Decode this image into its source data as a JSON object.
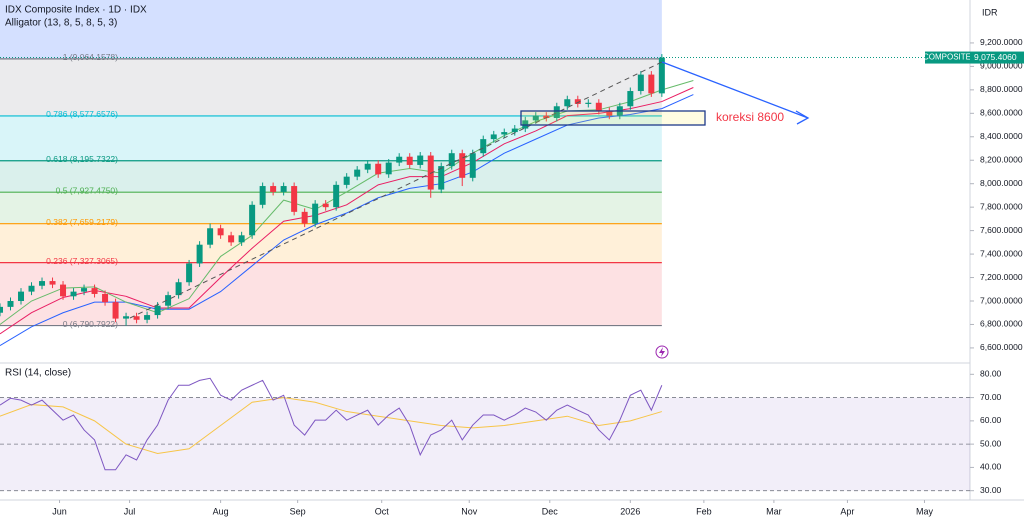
{
  "chart_data": [
    {
      "type": "candlestick",
      "title": "IDX Composite Index · 1D · IDX",
      "subtitle": "Alligator (13, 8, 5, 8, 5, 3)",
      "currency": "IDR",
      "x": [
        0,
        3,
        6,
        9,
        12,
        15,
        18,
        21,
        24,
        27,
        30,
        33,
        36,
        39,
        42,
        45,
        48,
        51,
        54,
        57,
        60,
        63,
        66,
        69,
        72,
        75,
        78,
        81,
        84,
        87,
        90,
        93,
        96,
        99,
        102,
        105,
        108,
        111,
        114,
        117,
        120,
        123,
        126,
        129,
        132,
        135,
        138,
        141,
        144,
        147,
        150,
        153,
        156,
        159,
        162,
        165,
        168,
        171,
        174,
        177,
        180,
        183,
        186,
        189
      ],
      "open": [
        6900,
        6950,
        7000,
        7080,
        7130,
        7170,
        7140,
        7040,
        7080,
        7110,
        7060,
        6990,
        6850,
        6870,
        6840,
        6880,
        6960,
        7050,
        7160,
        7320,
        7480,
        7620,
        7560,
        7500,
        7560,
        7820,
        7980,
        7930,
        7980,
        7760,
        7660,
        7830,
        7800,
        7990,
        8060,
        8120,
        8170,
        8080,
        8180,
        8230,
        8160,
        8240,
        7950,
        8150,
        8260,
        8050,
        8260,
        8380,
        8420,
        8440,
        8470,
        8540,
        8580,
        8560,
        8660,
        8720,
        8680,
        8690,
        8620,
        8580,
        8660,
        8790,
        8930,
        8770
      ],
      "high": [
        6980,
        7030,
        7110,
        7160,
        7200,
        7200,
        7170,
        7110,
        7140,
        7140,
        7090,
        7020,
        6900,
        6900,
        6910,
        6990,
        7080,
        7190,
        7350,
        7510,
        7660,
        7650,
        7590,
        7590,
        7850,
        8010,
        8010,
        8010,
        8010,
        7790,
        7860,
        7860,
        8020,
        8090,
        8150,
        8200,
        8200,
        8210,
        8260,
        8260,
        8270,
        8270,
        8180,
        8290,
        8290,
        8290,
        8410,
        8450,
        8470,
        8500,
        8570,
        8610,
        8610,
        8690,
        8750,
        8750,
        8720,
        8720,
        8650,
        8690,
        8820,
        8960,
        8960,
        9105
      ],
      "low": [
        6870,
        6920,
        6970,
        7050,
        7100,
        7110,
        7010,
        7010,
        7050,
        7030,
        6960,
        6820,
        6790,
        6810,
        6810,
        6850,
        6930,
        7020,
        7130,
        7290,
        7450,
        7530,
        7470,
        7470,
        7530,
        7790,
        7900,
        7900,
        7730,
        7630,
        7630,
        7770,
        7770,
        7960,
        8030,
        8090,
        8050,
        8050,
        8150,
        8130,
        8130,
        7880,
        7920,
        8120,
        7980,
        8020,
        8230,
        8350,
        8390,
        8410,
        8440,
        8510,
        8530,
        8530,
        8630,
        8650,
        8650,
        8590,
        8550,
        8550,
        8630,
        8760,
        8740,
        8740
      ],
      "close": [
        6950,
        7000,
        7080,
        7130,
        7170,
        7140,
        7040,
        7080,
        7110,
        7060,
        6990,
        6850,
        6870,
        6840,
        6880,
        6960,
        7050,
        7160,
        7320,
        7480,
        7620,
        7560,
        7500,
        7560,
        7820,
        7980,
        7930,
        7980,
        7760,
        7660,
        7830,
        7800,
        7990,
        8060,
        8120,
        8170,
        8080,
        8180,
        8230,
        8160,
        8240,
        7950,
        8150,
        8260,
        8050,
        8260,
        8380,
        8420,
        8440,
        8470,
        8540,
        8580,
        8560,
        8660,
        8720,
        8680,
        8690,
        8620,
        8580,
        8660,
        8790,
        8930,
        8770,
        9075
      ],
      "up_color": "#089981",
      "down_color": "#f23645",
      "lines": [
        {
          "color": "#2962ff",
          "x": [
            0,
            9,
            18,
            27,
            36,
            45,
            54,
            63,
            72,
            81,
            90,
            99,
            108,
            117,
            126,
            135,
            144,
            153,
            162,
            171,
            180,
            189,
            198
          ],
          "values": [
            6620,
            6780,
            6900,
            6990,
            6990,
            6930,
            6930,
            7080,
            7300,
            7520,
            7650,
            7750,
            7880,
            7960,
            8000,
            8100,
            8260,
            8380,
            8500,
            8560,
            8590,
            8640,
            8760
          ]
        },
        {
          "color": "#e91e63",
          "x": [
            0,
            9,
            18,
            27,
            36,
            45,
            54,
            63,
            72,
            81,
            90,
            99,
            108,
            117,
            126,
            135,
            144,
            153,
            162,
            171,
            180,
            189,
            198
          ],
          "values": [
            6720,
            6900,
            7030,
            7090,
            7040,
            6940,
            6940,
            7200,
            7450,
            7680,
            7730,
            7820,
            7990,
            8060,
            8060,
            8180,
            8340,
            8450,
            8580,
            8600,
            8640,
            8700,
            8820
          ]
        },
        {
          "color": "#66bb6a",
          "x": [
            0,
            9,
            18,
            27,
            36,
            45,
            54,
            63,
            72,
            81,
            90,
            99,
            108,
            117,
            126,
            135,
            144,
            153,
            162,
            171,
            180,
            189,
            198
          ],
          "values": [
            6800,
            7000,
            7110,
            7120,
            6990,
            6900,
            7020,
            7380,
            7560,
            7860,
            7780,
            7930,
            8090,
            8130,
            8090,
            8260,
            8410,
            8530,
            8620,
            8630,
            8700,
            8800,
            8880
          ]
        }
      ],
      "fib_levels": [
        {
          "label": "1 (9,064.1578)",
          "value": 9064.1578,
          "color": "#787b86"
        },
        {
          "label": "0.786 (8,577.6576)",
          "value": 8577.6576,
          "color": "#00bcd4"
        },
        {
          "label": "0.618 (8,195.7322)",
          "value": 8195.7322,
          "color": "#089981"
        },
        {
          "label": "0.5 (7,927.4750)",
          "value": 7927.475,
          "color": "#4caf50"
        },
        {
          "label": "0.382 (7,659.2179)",
          "value": 7659.2179,
          "color": "#ff9800"
        },
        {
          "label": "0.236 (7,327.3065)",
          "value": 7327.3065,
          "color": "#f23645"
        },
        {
          "label": "0 (6,790.7922)",
          "value": 6790.7922,
          "color": "#787b86"
        }
      ],
      "last_price": {
        "name": "COMPOSITE",
        "value": 9075.406,
        "label": "9,075.4060"
      },
      "annotation": "koreksi 8600",
      "xlim": [
        0,
        277
      ],
      "ylim": [
        6480,
        9566
      ],
      "yticks": [
        {
          "value": 9200,
          "label": "9,200.0000"
        },
        {
          "value": 9000,
          "label": "9,000.0000"
        },
        {
          "value": 8800,
          "label": "8,800.0000"
        },
        {
          "value": 8600,
          "label": "8,600.0000"
        },
        {
          "value": 8400,
          "label": "8,400.0000"
        },
        {
          "value": 8200,
          "label": "8,200.0000"
        },
        {
          "value": 8000,
          "label": "8,000.0000"
        },
        {
          "value": 7800,
          "label": "7,800.0000"
        },
        {
          "value": 7600,
          "label": "7,600.0000"
        },
        {
          "value": 7400,
          "label": "7,400.0000"
        },
        {
          "value": 7200,
          "label": "7,200.0000"
        },
        {
          "value": 7000,
          "label": "7,000.0000"
        },
        {
          "value": 6800,
          "label": "6,800.0000"
        },
        {
          "value": 6600,
          "label": "6,600.0000"
        }
      ]
    },
    {
      "type": "line",
      "title": "RSI (14, close)",
      "x": [
        0,
        3,
        6,
        9,
        12,
        15,
        18,
        21,
        24,
        27,
        30,
        33,
        36,
        39,
        42,
        45,
        48,
        51,
        54,
        57,
        60,
        63,
        66,
        69,
        72,
        75,
        78,
        81,
        84,
        87,
        90,
        93,
        96,
        99,
        102,
        105,
        108,
        111,
        114,
        117,
        120,
        123,
        126,
        129,
        132,
        135,
        138,
        141,
        144,
        147,
        150,
        153,
        156,
        159,
        162,
        165,
        168,
        171,
        174,
        177,
        180,
        183,
        186,
        189
      ],
      "values": [
        66.8,
        69.7,
        68.9,
        66.8,
        68.9,
        64.6,
        60.3,
        62.5,
        56.1,
        51.8,
        39.0,
        39.0,
        45.4,
        43.2,
        51.8,
        58.2,
        68.9,
        75.3,
        75.3,
        77.4,
        78.3,
        71.0,
        68.9,
        73.2,
        75.3,
        77.4,
        68.9,
        71.0,
        58.2,
        53.9,
        60.3,
        60.3,
        64.6,
        60.3,
        62.5,
        64.6,
        58.2,
        62.5,
        65.5,
        58.2,
        45.4,
        53.9,
        56.1,
        60.3,
        51.8,
        58.2,
        62.5,
        62.5,
        60.3,
        62.5,
        65.5,
        63.8,
        60.3,
        64.6,
        66.8,
        64.6,
        62.5,
        56.1,
        51.8,
        60.3,
        71.0,
        73.2,
        64.6,
        75.3
      ],
      "color": "#7e57c2",
      "ma": {
        "color": "#f7c548",
        "x": [
          0,
          9,
          18,
          27,
          36,
          45,
          54,
          63,
          72,
          81,
          90,
          99,
          108,
          117,
          126,
          135,
          144,
          153,
          162,
          171,
          180,
          189
        ],
        "values": [
          62,
          67,
          66,
          60,
          50,
          46,
          48,
          58,
          68,
          70,
          68,
          64,
          62,
          60,
          58,
          57,
          58,
          60,
          62,
          58,
          60,
          64
        ]
      },
      "levels": [
        70,
        50,
        30
      ],
      "xlim": [
        0,
        277
      ],
      "ylim": [
        26,
        84
      ],
      "yticks": [
        {
          "value": 80,
          "label": "80.00"
        },
        {
          "value": 70,
          "label": "70.00"
        },
        {
          "value": 60,
          "label": "60.00"
        },
        {
          "value": 50,
          "label": "50.00"
        },
        {
          "value": 40,
          "label": "40.00"
        },
        {
          "value": 30,
          "label": "30.00"
        }
      ],
      "xticks": [
        {
          "value": 17,
          "label": "Jun"
        },
        {
          "value": 37,
          "label": "Jul"
        },
        {
          "value": 63,
          "label": "Aug"
        },
        {
          "value": 85,
          "label": "Sep"
        },
        {
          "value": 109,
          "label": "Oct"
        },
        {
          "value": 134,
          "label": "Nov"
        },
        {
          "value": 157,
          "label": "Dec"
        },
        {
          "value": 180,
          "label": "2026"
        },
        {
          "value": 201,
          "label": "Feb"
        },
        {
          "value": 221,
          "label": "Mar"
        },
        {
          "value": 242,
          "label": "Apr"
        },
        {
          "value": 264,
          "label": "May"
        }
      ]
    }
  ]
}
